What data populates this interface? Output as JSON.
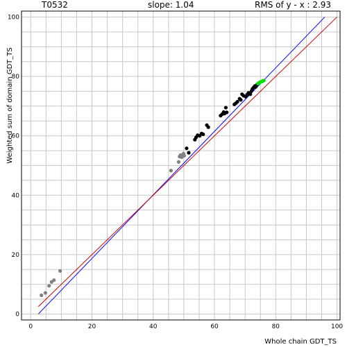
{
  "header": {
    "target": "T0532",
    "slope": "slope: 1.04",
    "rms": "RMS of  y - x : 2.93"
  },
  "chart_data": {
    "type": "scatter",
    "title": "",
    "xlabel": "Whole chain GDT_TS",
    "ylabel": "Weighted sum of domain GDT_TS",
    "xlim": [
      -3,
      101
    ],
    "ylim": [
      -2,
      102
    ],
    "xticks": [
      0,
      20,
      40,
      60,
      80,
      100
    ],
    "yticks": [
      0,
      20,
      40,
      60,
      80,
      100
    ],
    "grid": true,
    "colors": {
      "background": "#ffffff",
      "grid": "#c8c8c8",
      "frame": "#000000",
      "fit_line": "#0000ff",
      "identity_line": "#cc0000",
      "gray_points": "#808080",
      "black_points": "#000000",
      "green_points": "#00e000"
    },
    "lines": [
      {
        "role": "fit",
        "color": "#0000ff",
        "x": [
          2.5,
          96
        ],
        "y": [
          0,
          100
        ]
      },
      {
        "role": "identity",
        "color": "#cc0000",
        "x": [
          2.5,
          100
        ],
        "y": [
          2.5,
          100
        ]
      }
    ],
    "series": [
      {
        "color": "#808080",
        "x": [
          3.5,
          4.8,
          6.0,
          6.8,
          7.6,
          9.6,
          45.8,
          48.3,
          48.6,
          48.9,
          49.3,
          49.6,
          49.9,
          50.1
        ],
        "y": [
          6.3,
          7.1,
          9.5,
          10.8,
          11.4,
          14.5,
          48.3,
          51.2,
          53.0,
          53.5,
          52.8,
          53.6,
          54.0,
          53.3
        ]
      },
      {
        "color": "#000000",
        "x": [
          50.9,
          51.6,
          53.6,
          54.0,
          54.5,
          55.2,
          55.8,
          56.3,
          57.5,
          58.0,
          62.0,
          62.5,
          63.0,
          63.3,
          63.7,
          64.0,
          66.5,
          67.0,
          67.5,
          68.2,
          68.6,
          69.0,
          69.5,
          70.2,
          70.7,
          71.1,
          71.7,
          72.1,
          72.4,
          72.8,
          73.2,
          73.5,
          73.9
        ],
        "y": [
          55.8,
          54.3,
          58.7,
          59.5,
          60.2,
          60.0,
          60.8,
          60.5,
          63.6,
          62.9,
          66.8,
          67.3,
          68.0,
          67.5,
          69.5,
          67.9,
          70.6,
          71.0,
          71.5,
          72.5,
          72.1,
          74.0,
          73.5,
          73.2,
          73.9,
          74.5,
          74.0,
          75.1,
          75.8,
          76.3,
          76.8,
          76.5,
          77.2
        ]
      },
      {
        "color": "#00e000",
        "x": [
          74.2,
          74.6,
          74.9,
          75.2,
          75.5,
          75.8,
          76.1
        ],
        "y": [
          77.6,
          77.9,
          78.1,
          78.2,
          78.3,
          78.5,
          78.6
        ]
      }
    ]
  }
}
